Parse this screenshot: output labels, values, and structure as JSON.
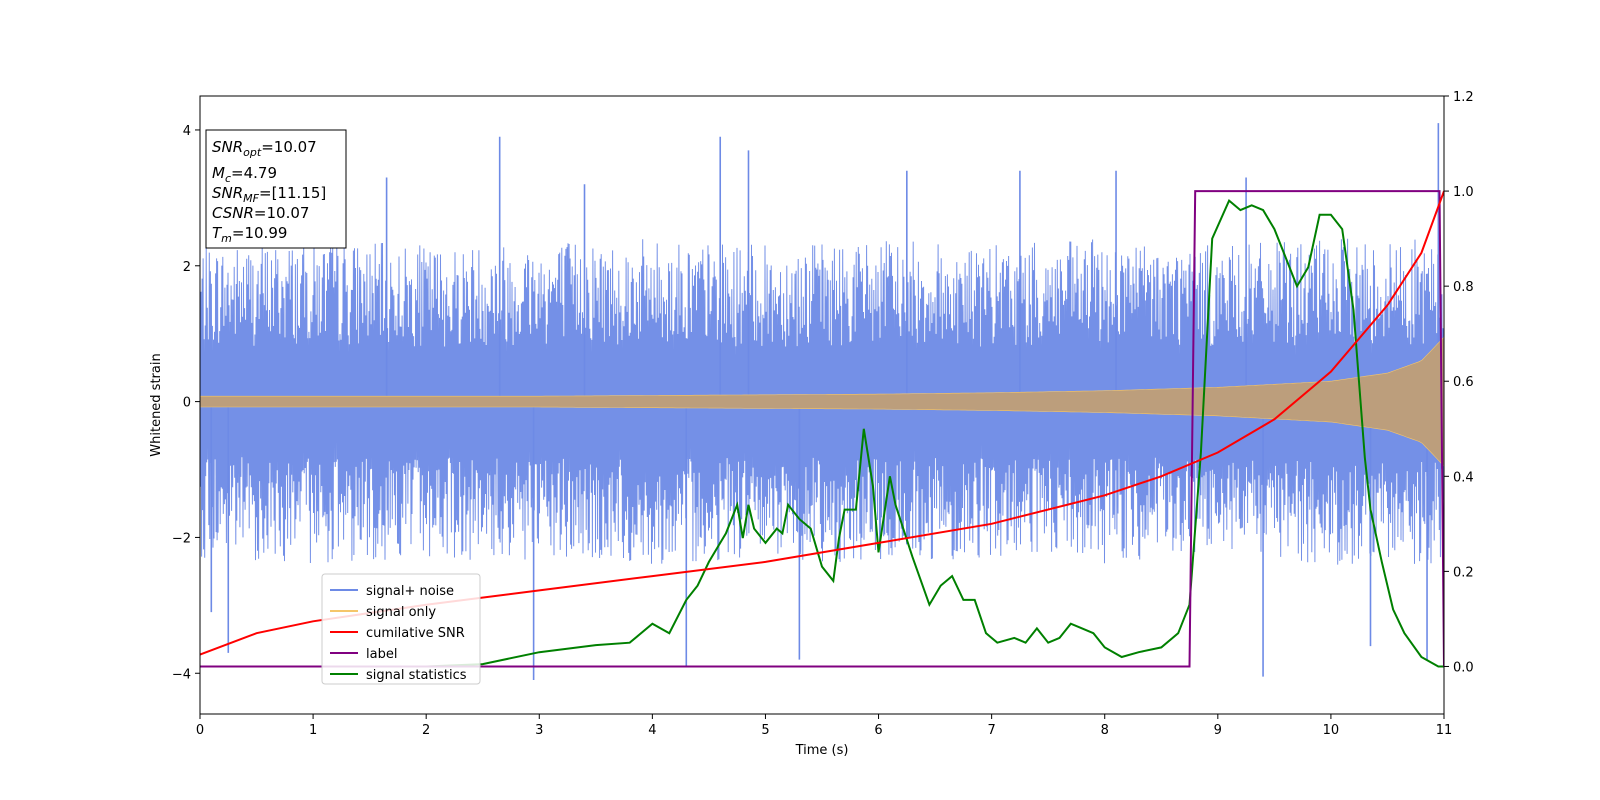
{
  "chart_data": {
    "type": "line",
    "xlabel": "Time (s)",
    "ylabel": "Whitened strain",
    "xlim": [
      0,
      11
    ],
    "ylim_left": [
      -4.6,
      4.5
    ],
    "ylim_right": [
      -0.1,
      1.2
    ],
    "x_ticks": [
      0,
      1,
      2,
      3,
      4,
      5,
      6,
      7,
      8,
      9,
      10,
      11
    ],
    "y_ticks_left": [
      -4,
      -2,
      0,
      2,
      4
    ],
    "y_ticks_right": [
      0.0,
      0.2,
      0.4,
      0.6,
      0.8,
      1.0,
      1.2
    ],
    "grid": false,
    "legend_position": "lower-left",
    "stats_box": {
      "snr_opt": {
        "sym": "SNR",
        "sub": "opt",
        "value": "=10.07"
      },
      "mc": {
        "sym": "M",
        "sub": "c",
        "value": "=4.79"
      },
      "snr_mf": {
        "sym": "SNR",
        "sub": "MF",
        "value": "=[11.15]"
      },
      "csnr": {
        "sym": "CSNR",
        "sub": "",
        "value": "=10.07"
      },
      "tm": {
        "sym": "T",
        "sub": "m",
        "value": "=10.99"
      }
    },
    "series": [
      {
        "name": "signal+ noise",
        "axis": "left",
        "color": "#6d8ae6",
        "kind": "noisy-band",
        "envelope": {
          "x": [
            0,
            1,
            2,
            3,
            4,
            5,
            6,
            7,
            8,
            9,
            10,
            11
          ],
          "low": [
            -2.3,
            -2.4,
            -2.3,
            -2.4,
            -2.4,
            -2.3,
            -2.4,
            -2.3,
            -2.4,
            -2.3,
            -2.4,
            -2.4
          ],
          "high": [
            2.3,
            2.4,
            2.3,
            2.4,
            2.4,
            2.3,
            2.4,
            2.3,
            2.4,
            2.3,
            2.4,
            2.4
          ]
        },
        "spikes": [
          {
            "x": 0.1,
            "y": -3.1
          },
          {
            "x": 0.25,
            "y": -3.7
          },
          {
            "x": 1.65,
            "y": 3.3
          },
          {
            "x": 2.65,
            "y": 3.9
          },
          {
            "x": 2.95,
            "y": -4.1
          },
          {
            "x": 3.4,
            "y": 3.2
          },
          {
            "x": 4.3,
            "y": -3.9
          },
          {
            "x": 4.6,
            "y": 3.9
          },
          {
            "x": 4.85,
            "y": 3.7
          },
          {
            "x": 5.3,
            "y": -3.8
          },
          {
            "x": 6.25,
            "y": 3.4
          },
          {
            "x": 7.25,
            "y": 3.4
          },
          {
            "x": 8.1,
            "y": 3.4
          },
          {
            "x": 9.25,
            "y": 3.3
          },
          {
            "x": 9.4,
            "y": -4.05
          },
          {
            "x": 10.35,
            "y": -3.6
          },
          {
            "x": 10.85,
            "y": -3.8
          },
          {
            "x": 10.95,
            "y": 4.1
          }
        ]
      },
      {
        "name": "signal only",
        "axis": "left",
        "color": "#f5c66a",
        "kind": "chirp-band",
        "x": [
          0,
          1,
          2,
          3,
          4,
          5,
          6,
          7,
          8,
          9,
          10,
          10.5,
          10.8,
          11
        ],
        "amplitude": [
          0.08,
          0.08,
          0.08,
          0.08,
          0.09,
          0.1,
          0.11,
          0.13,
          0.16,
          0.21,
          0.3,
          0.42,
          0.6,
          0.95
        ]
      },
      {
        "name": "cumilative SNR",
        "axis": "right",
        "color": "#ff0000",
        "x": [
          0,
          0.5,
          1,
          2,
          3,
          4,
          5,
          6,
          7,
          8,
          8.5,
          9,
          9.5,
          10,
          10.5,
          10.8,
          11
        ],
        "values": [
          0.025,
          0.07,
          0.095,
          0.13,
          0.16,
          0.19,
          0.22,
          0.26,
          0.3,
          0.36,
          0.4,
          0.45,
          0.52,
          0.62,
          0.76,
          0.87,
          1.0
        ]
      },
      {
        "name": "label",
        "axis": "right",
        "color": "#800080",
        "x": [
          0,
          8.75,
          8.8,
          10.96,
          11
        ],
        "values": [
          0,
          0,
          1,
          1,
          0
        ]
      },
      {
        "name": "signal statistics",
        "axis": "right",
        "color": "#008000",
        "x": [
          0,
          1,
          2,
          2.5,
          3,
          3.5,
          3.8,
          4.0,
          4.15,
          4.3,
          4.4,
          4.5,
          4.6,
          4.65,
          4.75,
          4.8,
          4.85,
          4.9,
          5.0,
          5.1,
          5.15,
          5.2,
          5.3,
          5.4,
          5.5,
          5.6,
          5.65,
          5.7,
          5.8,
          5.87,
          5.95,
          6.0,
          6.1,
          6.15,
          6.3,
          6.45,
          6.55,
          6.65,
          6.75,
          6.85,
          6.95,
          7.05,
          7.2,
          7.3,
          7.4,
          7.5,
          7.6,
          7.7,
          7.8,
          7.9,
          8.0,
          8.15,
          8.3,
          8.5,
          8.65,
          8.75,
          8.85,
          8.95,
          9.1,
          9.2,
          9.3,
          9.4,
          9.5,
          9.6,
          9.7,
          9.8,
          9.9,
          10.0,
          10.1,
          10.2,
          10.3,
          10.35,
          10.45,
          10.55,
          10.65,
          10.8,
          10.95,
          11.0
        ],
        "values": [
          0.0,
          0.0,
          0.0,
          0.005,
          0.03,
          0.045,
          0.05,
          0.09,
          0.07,
          0.14,
          0.17,
          0.22,
          0.26,
          0.28,
          0.34,
          0.27,
          0.34,
          0.29,
          0.26,
          0.29,
          0.28,
          0.34,
          0.31,
          0.29,
          0.21,
          0.18,
          0.27,
          0.33,
          0.33,
          0.5,
          0.38,
          0.24,
          0.4,
          0.34,
          0.23,
          0.13,
          0.17,
          0.19,
          0.14,
          0.14,
          0.07,
          0.05,
          0.06,
          0.05,
          0.08,
          0.05,
          0.06,
          0.09,
          0.08,
          0.07,
          0.04,
          0.02,
          0.03,
          0.04,
          0.07,
          0.13,
          0.45,
          0.9,
          0.98,
          0.96,
          0.97,
          0.96,
          0.92,
          0.86,
          0.8,
          0.84,
          0.95,
          0.95,
          0.92,
          0.75,
          0.44,
          0.33,
          0.22,
          0.12,
          0.07,
          0.02,
          0.0,
          0.0
        ]
      }
    ]
  }
}
